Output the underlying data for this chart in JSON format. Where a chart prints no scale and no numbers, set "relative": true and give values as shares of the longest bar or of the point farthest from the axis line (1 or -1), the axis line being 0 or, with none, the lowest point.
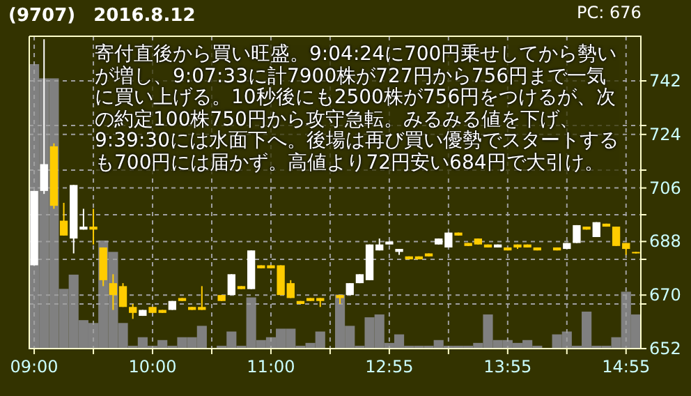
{
  "chart_data": [
    {
      "type": "candlestick",
      "title": "(9707)　2016.8.12",
      "annotations": [
        "PC: 676",
        "寄付直後から買い旺盛。9:04:24に700円乗せしてから勢いが増し、9:07:33に計7900株が727円から756円まで一気に買い上げる。10秒後にも2500株が756円をつけるが、次の約定100株750円から攻守急転。みるみる値を下げ、9:39:30には水面下へ。後場は再び買い優勢でスタートするも700円には届かず。高値より72円安い684円で大引け。"
      ],
      "categories": [
        "09:00",
        null,
        null,
        null,
        null,
        null,
        null,
        null,
        null,
        null,
        null,
        null,
        "10:00",
        null,
        null,
        null,
        null,
        null,
        null,
        null,
        null,
        null,
        null,
        null,
        "11:00",
        null,
        null,
        null,
        null,
        null,
        null,
        null,
        null,
        null,
        null,
        null,
        "12:55",
        null,
        null,
        null,
        null,
        null,
        null,
        null,
        null,
        null,
        null,
        null,
        "13:55",
        null,
        null,
        null,
        null,
        null,
        null,
        null,
        null,
        null,
        null,
        null,
        "14:55",
        null
      ],
      "ylim": [
        652,
        757
      ],
      "yticks": [
        652,
        {
          "value": 667,
          "label": null
        },
        670,
        {
          "value": 682,
          "label": null
        },
        688,
        {
          "value": 697,
          "label": null
        },
        706,
        {
          "value": 712,
          "label": null
        },
        724,
        {
          "value": 727,
          "label": null
        },
        742
      ],
      "grid": true,
      "ohlc": [
        [
          680,
          705,
          680,
          705
        ],
        [
          705,
          756,
          704,
          714
        ],
        [
          720,
          721,
          699,
          700
        ],
        [
          695,
          701,
          690,
          690
        ],
        [
          689,
          707,
          684,
          707
        ],
        [
          692,
          699,
          692,
          693
        ],
        [
          693,
          699,
          687,
          692
        ],
        [
          686,
          686,
          673,
          675
        ],
        [
          674,
          677,
          665,
          670
        ],
        [
          673,
          674,
          666,
          666
        ],
        [
          666,
          667,
          662,
          664
        ],
        [
          663,
          665,
          663,
          665
        ],
        [
          666,
          666,
          664,
          664
        ],
        [
          665,
          665,
          664,
          664
        ],
        [
          665,
          668,
          665,
          668
        ],
        [
          669,
          669,
          668,
          668
        ],
        [
          666,
          666,
          665,
          665
        ],
        [
          666,
          673,
          665,
          665
        ],
        null,
        [
          670,
          670,
          668,
          668
        ],
        [
          670,
          677,
          670,
          677
        ],
        [
          673,
          673,
          672,
          672
        ],
        [
          672,
          685,
          672,
          685
        ],
        [
          680,
          680,
          679,
          679
        ],
        [
          680,
          680,
          679,
          679
        ],
        [
          680,
          680,
          670,
          670
        ],
        [
          674,
          675,
          669,
          669
        ],
        [
          668,
          668,
          667,
          667
        ],
        [
          669,
          669,
          668,
          668
        ],
        [
          669,
          669,
          666,
          668
        ],
        null,
        [
          670,
          670,
          667,
          669
        ],
        [
          670,
          674,
          670,
          674
        ],
        [
          674,
          677,
          674,
          677
        ],
        [
          675,
          687,
          675,
          687
        ],
        [
          685,
          689,
          685,
          687
        ],
        [
          687,
          688,
          687,
          688
        ],
        [
          684.5,
          685.5,
          683.5,
          685.5
        ],
        [
          683,
          683,
          682,
          682
        ],
        [
          683,
          683,
          682,
          682
        ],
        [
          684,
          684,
          683,
          683
        ],
        [
          687,
          689,
          687,
          689
        ],
        [
          686,
          691,
          686,
          691
        ],
        [
          691,
          691,
          690,
          690
        ],
        [
          687.5,
          687.5,
          686.5,
          686.5
        ],
        [
          689,
          689,
          687,
          687
        ],
        [
          687,
          687,
          686,
          686
        ],
        [
          686,
          687,
          686,
          687
        ],
        [
          686,
          686,
          685,
          685
        ],
        [
          687,
          687,
          685.5,
          686
        ],
        [
          687,
          687,
          686,
          686
        ],
        [
          686,
          686,
          685,
          685
        ],
        null,
        [
          686,
          686,
          685,
          685
        ],
        [
          685.5,
          687.5,
          685.5,
          687.5
        ],
        [
          687.5,
          693.5,
          687.5,
          693.5
        ],
        [
          693,
          693,
          692,
          692
        ],
        [
          689.5,
          694.5,
          689.5,
          694.5
        ],
        [
          694,
          694,
          693,
          693
        ],
        [
          693,
          693,
          686.5,
          686.5
        ],
        [
          687.5,
          687.5,
          683.5,
          685.5
        ],
        [
          684.5,
          684.5,
          684,
          684
        ]
      ],
      "colors": [
        "#ffffff",
        "#ffffff",
        "#ffcc00",
        "#ffcc00",
        "#ffffff",
        "#ffffff",
        "#ffcc00",
        "#ffcc00",
        "#ffcc00",
        "#ffcc00",
        "#ffcc00",
        "#ffffff",
        "#ffcc00",
        "#ffcc00",
        "#ffffff",
        "#ffcc00",
        "#ffcc00",
        "#ffcc00",
        null,
        "#ffcc00",
        "#ffffff",
        "#ffcc00",
        "#ffffff",
        "#ffcc00",
        "#ffcc00",
        "#ffcc00",
        "#ffcc00",
        "#ffcc00",
        "#ffcc00",
        "#ffcc00",
        null,
        "#ffcc00",
        "#ffffff",
        "#ffffff",
        "#ffffff",
        "#ffffff",
        "#ffffff",
        "#ffffff",
        "#ffcc00",
        "#ffcc00",
        "#ffcc00",
        "#ffffff",
        "#ffffff",
        "#ffcc00",
        "#ffcc00",
        "#ffcc00",
        "#ffcc00",
        "#ffffff",
        "#ffcc00",
        "#ffcc00",
        "#ffcc00",
        "#ffcc00",
        null,
        "#ffcc00",
        "#ffffff",
        "#ffffff",
        "#ffcc00",
        "#ffffff",
        "#ffcc00",
        "#ffcc00",
        "#ffcc00",
        "#ffcc00"
      ]
    },
    {
      "type": "bar",
      "relative": true,
      "tick_labels": false,
      "color": "#808080",
      "categories": [
        null,
        null,
        null,
        null,
        null,
        null,
        null,
        null,
        null,
        null,
        null,
        null,
        null,
        null,
        null,
        null,
        null,
        null,
        null,
        null,
        null,
        null,
        null,
        null,
        null,
        null,
        null,
        null,
        null,
        null,
        null,
        null,
        null,
        null,
        null,
        null,
        null,
        null,
        null,
        null,
        null,
        null,
        null,
        null,
        null,
        null,
        null,
        null,
        null,
        null,
        null,
        null,
        null,
        null,
        null,
        null,
        null,
        null,
        null,
        null,
        null,
        null
      ],
      "values": [
        1,
        0.95,
        0.95,
        0.21,
        0.26,
        0.1,
        0.09,
        0.38,
        0.34,
        0.09,
        0.01,
        0.04,
        0.01,
        0.03,
        0.01,
        0.04,
        0.04,
        0.08,
        null,
        0.01,
        0.06,
        0.01,
        0.18,
        0.03,
        0.04,
        0.07,
        0.07,
        0.01,
        0.02,
        0.06,
        null,
        0.19,
        0.08,
        0.01,
        0.11,
        0.12,
        0.02,
        0.05,
        0.01,
        0.01,
        0.01,
        0.03,
        0.01,
        0.01,
        0.01,
        0.02,
        0.12,
        0.03,
        0.03,
        0.02,
        0.03,
        0.01,
        null,
        0.05,
        0.06,
        0.01,
        0.13,
        0.01,
        0.01,
        0.04,
        0.2,
        0.12
      ]
    }
  ]
}
